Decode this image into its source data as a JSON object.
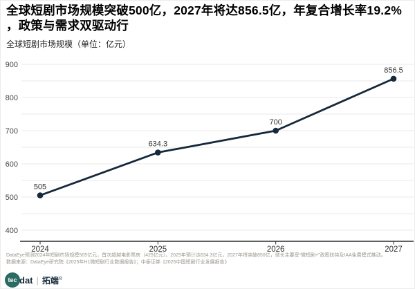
{
  "page": {
    "title_lines": [
      "全球短剧市场规模突破500亿，2027年将达856.5亿，年复合增长率19.2%",
      "，政策与需求双驱动行"
    ],
    "subtitle": "全球短剧市场规模（单位：亿元）"
  },
  "chart_data": {
    "type": "line",
    "title": "全球短剧市场规模",
    "unit": "亿元",
    "categories": [
      "2024",
      "2025",
      "2026",
      "2027"
    ],
    "series": [
      {
        "name": "全球短剧市场规模",
        "values": [
          505,
          634.3,
          700,
          856.5
        ]
      }
    ],
    "data_labels": [
      "505",
      "634.3",
      "700",
      "856.5"
    ],
    "ylim": [
      400,
      900
    ],
    "y_major_ticks": [
      900,
      800,
      700,
      600,
      500,
      400
    ],
    "y_minor_step": 50,
    "grid": true,
    "legend": false,
    "xlabel": "",
    "ylabel": "",
    "line_color": "#16293b",
    "grid_color": "#e8e8e8",
    "axis_color": "#2b2b2b",
    "tick_label_color": "#444444",
    "label_color": "#333333"
  },
  "footnotes": [
    "DataEye预测2024年短剧市场规模505亿元，首次超越电影票房（425亿元）。2025年预计达634.3亿元，2027年将突破850亿，增长主要受“微短剧+”政策扶持及IAA免费模式推动。",
    "数据来源：DataEye研究院《2025年H1微短剧行业数据报告》；中泰证券《2025中国短剧行业发展报告》"
  ],
  "logo": {
    "circle_text": "tec",
    "wordmark": "dat",
    "divider": "|",
    "cn_name": "拓端",
    "registered": "®",
    "circle_color": "#2c6b62",
    "text_color": "#16293b"
  }
}
